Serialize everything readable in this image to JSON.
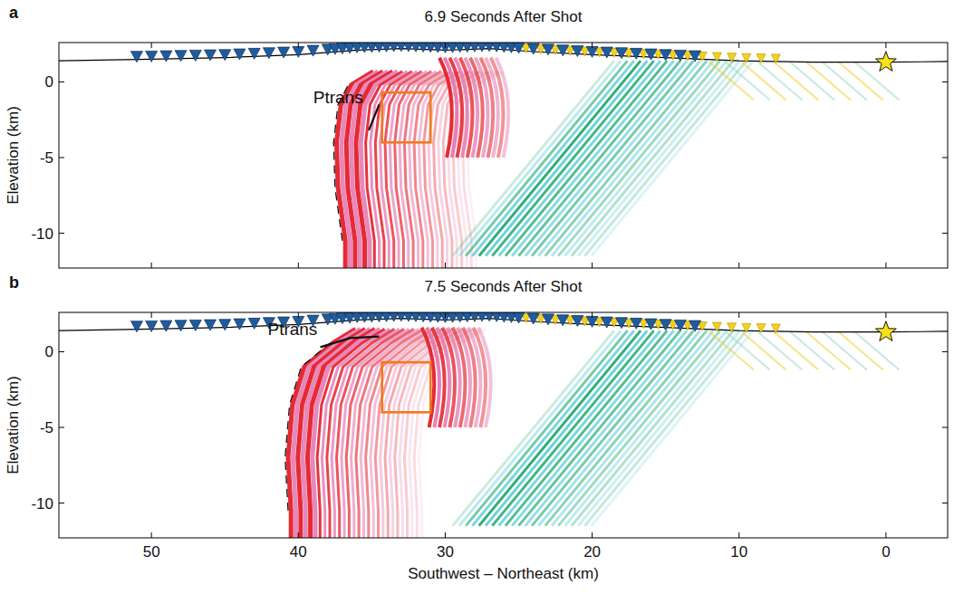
{
  "chart_data": [
    {
      "type": "wavefield",
      "panel": "a",
      "title": "6.9 Seconds After Shot",
      "y_label": "Elevation (km)",
      "xlim": [
        56.3,
        -4.2
      ],
      "ylim": [
        -12.3,
        2.6
      ],
      "xticks": [
        50,
        40,
        30,
        20,
        10,
        0
      ],
      "yticks": [
        0,
        -5,
        -10
      ],
      "tick_labels": "y",
      "topography": {
        "x": [
          56.3,
          50,
          45,
          40,
          36,
          33,
          30,
          27,
          24,
          20,
          15,
          10,
          5,
          0,
          -4.2
        ],
        "y": [
          1.4,
          1.5,
          1.6,
          1.8,
          2.1,
          2.2,
          2.1,
          2.2,
          2.0,
          1.8,
          1.6,
          1.4,
          1.3,
          1.3,
          1.35
        ]
      },
      "receivers": {
        "x": [
          51,
          50,
          49,
          48,
          47,
          46,
          45,
          44,
          43,
          42,
          41,
          40,
          39,
          38,
          37.5,
          37,
          36.5,
          36,
          35.5,
          35,
          34.5,
          34,
          33.5,
          33,
          32.5,
          32,
          31.5,
          31,
          30.5,
          30,
          29.5,
          29,
          28.5,
          28,
          27.5,
          27,
          26.5,
          26,
          25.5,
          25,
          24,
          23,
          22,
          21,
          20,
          19,
          18,
          17,
          16,
          15,
          14,
          13
        ]
      },
      "secondary_receivers": {
        "x": [
          24.5,
          23.5,
          22.5,
          21.5,
          20.5,
          19.5,
          18.5,
          17.5,
          16.5,
          15.5,
          14.5,
          13.5,
          12.5,
          11.5,
          10.5,
          9.5,
          8.5,
          7.5
        ]
      },
      "source": {
        "x": 0,
        "y": 1.3
      },
      "box": {
        "x": [
          34.3,
          31.0
        ],
        "y": [
          -4.0,
          -0.7
        ]
      },
      "front": {
        "x": [
          37.0,
          37.5,
          37.6,
          37.3,
          36.6
        ],
        "y": [
          -10.5,
          -7,
          -4,
          -1.5,
          -0.2
        ]
      },
      "annotation": {
        "text": "Ptrans",
        "x": 35.6,
        "y": -1.4,
        "line_x": [
          35.2,
          34.5
        ],
        "line_y": [
          -3.2,
          -1.5
        ]
      }
    },
    {
      "type": "wavefield",
      "panel": "b",
      "title": "7.5 Seconds After Shot",
      "x_label": "Southwest – Northeast (km)",
      "y_label": "Elevation (km)",
      "xlim": [
        56.3,
        -4.2
      ],
      "ylim": [
        -12.3,
        2.6
      ],
      "xticks": [
        50,
        40,
        30,
        20,
        10,
        0
      ],
      "yticks": [
        0,
        -5,
        -10
      ],
      "topography": {
        "x": [
          56.3,
          50,
          45,
          40,
          36,
          33,
          30,
          27,
          24,
          20,
          15,
          10,
          5,
          0,
          -4.2
        ],
        "y": [
          1.4,
          1.5,
          1.6,
          1.8,
          2.1,
          2.2,
          2.1,
          2.2,
          2.0,
          1.8,
          1.6,
          1.4,
          1.3,
          1.3,
          1.35
        ]
      },
      "receivers": {
        "x": [
          51,
          50,
          49,
          48,
          47,
          46,
          45,
          44,
          43,
          42,
          41,
          40,
          39,
          38,
          37.5,
          37,
          36.5,
          36,
          35.5,
          35,
          34.5,
          34,
          33.5,
          33,
          32.5,
          32,
          31.5,
          31,
          30.5,
          30,
          29.5,
          29,
          28.5,
          28,
          27.5,
          27,
          26.5,
          26,
          25.5,
          25,
          24,
          23,
          22,
          21,
          20,
          19,
          18,
          17,
          16,
          15,
          14,
          13
        ]
      },
      "secondary_receivers": {
        "x": [
          24.5,
          23.5,
          22.5,
          21.5,
          20.5,
          19.5,
          18.5,
          17.5,
          16.5,
          15.5,
          14.5,
          13.5,
          12.5,
          11.5,
          10.5,
          9.5,
          8.5,
          7.5
        ]
      },
      "source": {
        "x": 0,
        "y": 1.3
      },
      "box": {
        "x": [
          34.3,
          31.0
        ],
        "y": [
          -4.0,
          -0.7
        ]
      },
      "front": {
        "x": [
          40.7,
          40.9,
          40.6,
          39.8,
          37.8
        ],
        "y": [
          -10.5,
          -7,
          -3.5,
          -1.0,
          0.6
        ]
      },
      "annotation": {
        "text": "Ptrans",
        "x": 38.7,
        "y": 1.1,
        "line_x": [
          38.5,
          36.5,
          34.5
        ],
        "line_y": [
          0.3,
          0.9,
          1.0
        ]
      }
    }
  ]
}
